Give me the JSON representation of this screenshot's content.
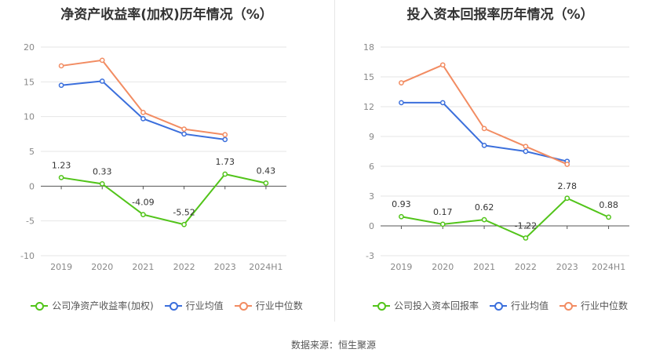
{
  "source": "数据来源：恒生聚源",
  "chart_data": [
    {
      "type": "line",
      "title": "净资产收益率(加权)历年情况（%）",
      "categories": [
        "2019",
        "2020",
        "2021",
        "2022",
        "2023",
        "2024H1"
      ],
      "ylim": [
        -10,
        20
      ],
      "yticks": [
        -10,
        -5,
        0,
        5,
        10,
        15,
        20
      ],
      "grid": true,
      "legend_position": "bottom",
      "series": [
        {
          "name": "公司净资产收益率(加权)",
          "color": "#52c41a",
          "values": [
            1.23,
            0.33,
            -4.09,
            -5.52,
            1.73,
            0.43
          ],
          "labels": [
            "1.23",
            "0.33",
            "-4.09",
            "-5.52",
            "1.73",
            "0.43"
          ]
        },
        {
          "name": "行业均值",
          "color": "#3b6fdc",
          "values": [
            14.5,
            15.1,
            9.7,
            7.5,
            6.7,
            null
          ]
        },
        {
          "name": "行业中位数",
          "color": "#f28c62",
          "values": [
            17.3,
            18.1,
            10.6,
            8.2,
            7.4,
            null
          ]
        }
      ]
    },
    {
      "type": "line",
      "title": "投入资本回报率历年情况（%）",
      "categories": [
        "2019",
        "2020",
        "2021",
        "2022",
        "2023",
        "2024H1"
      ],
      "ylim": [
        -3,
        18
      ],
      "yticks": [
        -3,
        0,
        3,
        6,
        9,
        12,
        15,
        18
      ],
      "grid": true,
      "legend_position": "bottom",
      "series": [
        {
          "name": "公司投入资本回报率",
          "color": "#52c41a",
          "values": [
            0.93,
            0.17,
            0.62,
            -1.22,
            2.78,
            0.88
          ],
          "labels": [
            "0.93",
            "0.17",
            "0.62",
            "-1.22",
            "2.78",
            "0.88"
          ]
        },
        {
          "name": "行业均值",
          "color": "#3b6fdc",
          "values": [
            12.4,
            12.4,
            8.1,
            7.5,
            6.5,
            null
          ]
        },
        {
          "name": "行业中位数",
          "color": "#f28c62",
          "values": [
            14.4,
            16.2,
            9.8,
            8.0,
            6.2,
            null
          ]
        }
      ]
    }
  ]
}
